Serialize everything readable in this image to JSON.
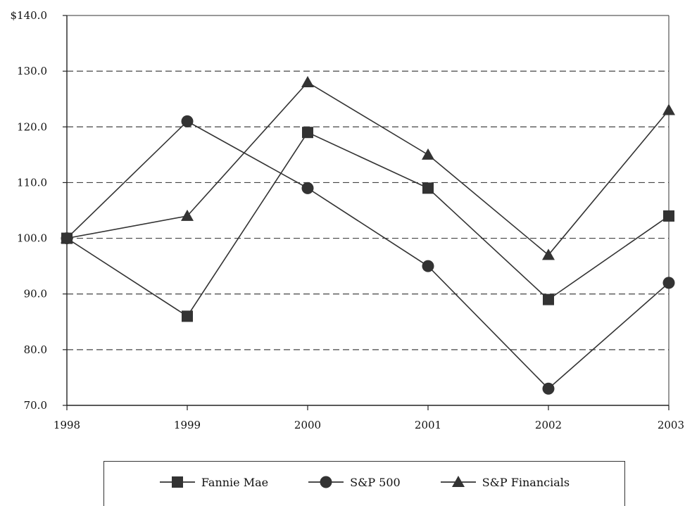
{
  "chart_data": {
    "type": "line",
    "x": [
      "1998",
      "1999",
      "2000",
      "2001",
      "2002",
      "2003"
    ],
    "ylim": [
      70,
      140
    ],
    "yticks": [
      70,
      80,
      90,
      100,
      110,
      120,
      130,
      140
    ],
    "ytick_labels": [
      "70.0",
      "80.0",
      "90.0",
      "100.0",
      "110.0",
      "120.0",
      "130.0",
      "$140.0"
    ],
    "grid": true,
    "legend_position": "bottom",
    "series": [
      {
        "name": "Fannie Mae",
        "marker": "square",
        "values": [
          100,
          86,
          119,
          109,
          89,
          104
        ]
      },
      {
        "name": "S&P 500",
        "marker": "circle",
        "values": [
          100,
          121,
          109,
          95,
          73,
          92
        ]
      },
      {
        "name": "S&P Financials",
        "marker": "triangle",
        "values": [
          100,
          104,
          128,
          115,
          97,
          123
        ]
      }
    ],
    "line_color": "#333333"
  }
}
